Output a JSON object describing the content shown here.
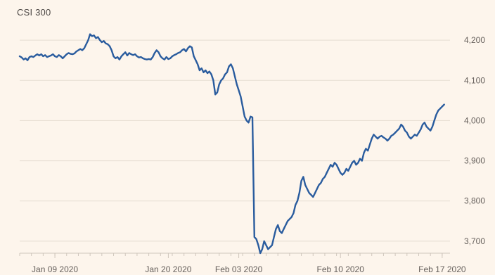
{
  "chart_data": {
    "type": "line",
    "title": "CSI 300",
    "xlabel": "",
    "ylabel": "",
    "ylim": [
      3670,
      4230
    ],
    "y_ticks": [
      3700,
      3800,
      3900,
      4000,
      4100,
      4200
    ],
    "y_tick_labels": [
      "3,700",
      "3,800",
      "3,900",
      "4,000",
      "4,100",
      "4,200"
    ],
    "x_ticks": [
      {
        "label": "Jan 09 2020",
        "x": 9
      },
      {
        "label": "Jan 20 2020",
        "x": 38
      },
      {
        "label": "Feb 03 2020",
        "x": 56
      },
      {
        "label": "Feb 10 2020",
        "x": 82
      },
      {
        "label": "Feb 17 2020",
        "x": 108
      }
    ],
    "xlim": [
      0,
      110
    ],
    "grid": true,
    "colors": {
      "line": "#2a5c9e",
      "grid": "#e6ddd2",
      "axis": "#cfc6bc",
      "background": "#fdf5ec"
    },
    "series": [
      {
        "values": [
          [
            0,
            4160
          ],
          [
            0.5,
            4157
          ],
          [
            1,
            4152
          ],
          [
            1.5,
            4155
          ],
          [
            2,
            4150
          ],
          [
            2.5,
            4158
          ],
          [
            3,
            4160
          ],
          [
            3.5,
            4158
          ],
          [
            4,
            4162
          ],
          [
            4.5,
            4165
          ],
          [
            5,
            4162
          ],
          [
            5.5,
            4165
          ],
          [
            6,
            4160
          ],
          [
            6.5,
            4163
          ],
          [
            7,
            4158
          ],
          [
            7.5,
            4160
          ],
          [
            8,
            4162
          ],
          [
            8.5,
            4165
          ],
          [
            9,
            4160
          ],
          [
            9.5,
            4158
          ],
          [
            10,
            4163
          ],
          [
            10.5,
            4160
          ],
          [
            11,
            4155
          ],
          [
            11.5,
            4160
          ],
          [
            12,
            4165
          ],
          [
            12.5,
            4168
          ],
          [
            13,
            4166
          ],
          [
            13.5,
            4165
          ],
          [
            14,
            4167
          ],
          [
            14.5,
            4172
          ],
          [
            15,
            4175
          ],
          [
            15.5,
            4178
          ],
          [
            16,
            4175
          ],
          [
            16.5,
            4180
          ],
          [
            17,
            4190
          ],
          [
            17.5,
            4200
          ],
          [
            18,
            4215
          ],
          [
            18.5,
            4210
          ],
          [
            19,
            4212
          ],
          [
            19.5,
            4205
          ],
          [
            20,
            4208
          ],
          [
            20.5,
            4200
          ],
          [
            21,
            4195
          ],
          [
            21.5,
            4198
          ],
          [
            22,
            4192
          ],
          [
            22.5,
            4190
          ],
          [
            23,
            4185
          ],
          [
            23.5,
            4175
          ],
          [
            24,
            4160
          ],
          [
            24.5,
            4155
          ],
          [
            25,
            4158
          ],
          [
            25.5,
            4152
          ],
          [
            26,
            4160
          ],
          [
            26.5,
            4165
          ],
          [
            27,
            4170
          ],
          [
            27.5,
            4162
          ],
          [
            28,
            4168
          ],
          [
            28.5,
            4165
          ],
          [
            29,
            4163
          ],
          [
            29.5,
            4165
          ],
          [
            30,
            4160
          ],
          [
            30.5,
            4157
          ],
          [
            31,
            4158
          ],
          [
            31.5,
            4155
          ],
          [
            32,
            4153
          ],
          [
            32.5,
            4152
          ],
          [
            33,
            4153
          ],
          [
            33.5,
            4152
          ],
          [
            34,
            4158
          ],
          [
            34.5,
            4168
          ],
          [
            35,
            4175
          ],
          [
            35.5,
            4170
          ],
          [
            36,
            4160
          ],
          [
            36.5,
            4155
          ],
          [
            37,
            4152
          ],
          [
            37.5,
            4158
          ],
          [
            38,
            4153
          ],
          [
            38.5,
            4155
          ],
          [
            39,
            4160
          ],
          [
            39.5,
            4163
          ],
          [
            40,
            4165
          ],
          [
            40.5,
            4168
          ],
          [
            41,
            4170
          ],
          [
            41.5,
            4175
          ],
          [
            42,
            4178
          ],
          [
            42.5,
            4172
          ],
          [
            43,
            4180
          ],
          [
            43.5,
            4185
          ],
          [
            44,
            4182
          ],
          [
            44.5,
            4160
          ],
          [
            45,
            4150
          ],
          [
            45.5,
            4140
          ],
          [
            46,
            4125
          ],
          [
            46.5,
            4130
          ],
          [
            47,
            4120
          ],
          [
            47.5,
            4125
          ],
          [
            48,
            4118
          ],
          [
            48.5,
            4122
          ],
          [
            49,
            4115
          ],
          [
            49.5,
            4100
          ],
          [
            50,
            4065
          ],
          [
            50.5,
            4070
          ],
          [
            51,
            4090
          ],
          [
            51.5,
            4100
          ],
          [
            52,
            4105
          ],
          [
            52.5,
            4115
          ],
          [
            53,
            4120
          ],
          [
            53.5,
            4135
          ],
          [
            54,
            4140
          ],
          [
            54.5,
            4130
          ],
          [
            55,
            4110
          ],
          [
            55.5,
            4090
          ],
          [
            56,
            4075
          ],
          [
            56.5,
            4060
          ],
          [
            57,
            4035
          ],
          [
            57.5,
            4010
          ],
          [
            58,
            4000
          ],
          [
            58.5,
            3995
          ],
          [
            59,
            4010
          ],
          [
            59.5,
            4008
          ],
          [
            60,
            3710
          ],
          [
            60.5,
            3705
          ],
          [
            61,
            3690
          ],
          [
            61.5,
            3670
          ],
          [
            62,
            3680
          ],
          [
            62.5,
            3700
          ],
          [
            63,
            3690
          ],
          [
            63.5,
            3680
          ],
          [
            64,
            3685
          ],
          [
            64.5,
            3690
          ],
          [
            65,
            3710
          ],
          [
            65.5,
            3730
          ],
          [
            66,
            3740
          ],
          [
            66.5,
            3725
          ],
          [
            67,
            3720
          ],
          [
            67.5,
            3730
          ],
          [
            68,
            3740
          ],
          [
            68.5,
            3750
          ],
          [
            69,
            3755
          ],
          [
            69.5,
            3760
          ],
          [
            70,
            3770
          ],
          [
            70.5,
            3790
          ],
          [
            71,
            3800
          ],
          [
            71.5,
            3820
          ],
          [
            72,
            3850
          ],
          [
            72.5,
            3860
          ],
          [
            73,
            3840
          ],
          [
            73.5,
            3830
          ],
          [
            74,
            3820
          ],
          [
            74.5,
            3815
          ],
          [
            75,
            3810
          ],
          [
            75.5,
            3820
          ],
          [
            76,
            3830
          ],
          [
            76.5,
            3840
          ],
          [
            77,
            3845
          ],
          [
            77.5,
            3855
          ],
          [
            78,
            3860
          ],
          [
            78.5,
            3870
          ],
          [
            79,
            3880
          ],
          [
            79.5,
            3890
          ],
          [
            80,
            3885
          ],
          [
            80.5,
            3895
          ],
          [
            81,
            3890
          ],
          [
            81.5,
            3880
          ],
          [
            82,
            3870
          ],
          [
            82.5,
            3865
          ],
          [
            83,
            3870
          ],
          [
            83.5,
            3880
          ],
          [
            84,
            3875
          ],
          [
            84.5,
            3885
          ],
          [
            85,
            3895
          ],
          [
            85.5,
            3900
          ],
          [
            86,
            3890
          ],
          [
            86.5,
            3895
          ],
          [
            87,
            3905
          ],
          [
            87.5,
            3900
          ],
          [
            88,
            3920
          ],
          [
            88.5,
            3930
          ],
          [
            89,
            3925
          ],
          [
            89.5,
            3940
          ],
          [
            90,
            3955
          ],
          [
            90.5,
            3965
          ],
          [
            91,
            3960
          ],
          [
            91.5,
            3955
          ],
          [
            92,
            3960
          ],
          [
            92.5,
            3962
          ],
          [
            93,
            3958
          ],
          [
            93.5,
            3955
          ],
          [
            94,
            3950
          ],
          [
            94.5,
            3955
          ],
          [
            95,
            3962
          ],
          [
            95.5,
            3965
          ],
          [
            96,
            3970
          ],
          [
            96.5,
            3975
          ],
          [
            97,
            3980
          ],
          [
            97.5,
            3990
          ],
          [
            98,
            3985
          ],
          [
            98.5,
            3975
          ],
          [
            99,
            3970
          ],
          [
            99.5,
            3960
          ],
          [
            100,
            3955
          ],
          [
            100.5,
            3960
          ],
          [
            101,
            3965
          ],
          [
            101.5,
            3962
          ],
          [
            102,
            3970
          ],
          [
            102.5,
            3978
          ],
          [
            103,
            3990
          ],
          [
            103.5,
            3995
          ],
          [
            104,
            3985
          ],
          [
            104.5,
            3980
          ],
          [
            105,
            3975
          ],
          [
            105.5,
            3985
          ],
          [
            106,
            4000
          ],
          [
            106.5,
            4015
          ],
          [
            107,
            4025
          ],
          [
            107.5,
            4030
          ],
          [
            108,
            4035
          ],
          [
            108.5,
            4040
          ]
        ]
      }
    ]
  }
}
